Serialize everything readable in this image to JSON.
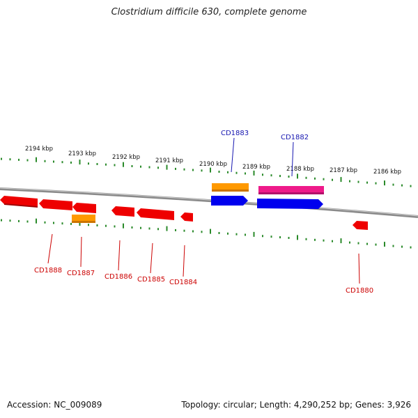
{
  "title": "Clostridium difficile 630, complete genome",
  "footer": {
    "accession": "Accession: NC_009089",
    "summary": "Topology: circular; Length: 4,290,252 bp; Genes: 3,926"
  },
  "colors": {
    "backbone": "#8a8a8a",
    "ticks": "#2a8a2a",
    "forward_label": "#1515b0",
    "reverse_label": "#cc0000"
  },
  "ruler_labels": [
    "2194 kbp",
    "2193 kbp",
    "2192 kbp",
    "2191 kbp",
    "2190 kbp",
    "2189 kbp",
    "2188 kbp",
    "2187 kbp",
    "2186 kbp"
  ],
  "gene_labels": {
    "forward": [
      "CD1883",
      "CD1882"
    ],
    "reverse": [
      "CD1888",
      "CD1887",
      "CD1886",
      "CD1885",
      "CD1884",
      "CD1880"
    ]
  },
  "feature_colors": {
    "forward_cds": "#0000ee",
    "reverse_cds": "#ee0000",
    "orange": "#ff9900",
    "magenta": "#ee1a8a"
  }
}
